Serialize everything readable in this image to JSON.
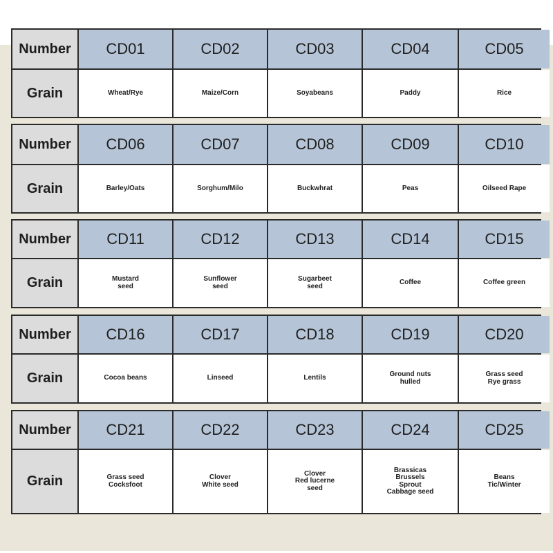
{
  "blocks": [
    {
      "number_label": "Number",
      "grain_label": "Grain",
      "codes": [
        "CD01",
        "CD02",
        "CD03",
        "CD04",
        "CD05"
      ],
      "grains": [
        "Wheat/Rye",
        "Maize/Corn",
        "Soyabeans",
        "Paddy",
        "Rice"
      ]
    },
    {
      "number_label": "Number",
      "grain_label": "Grain",
      "codes": [
        "CD06",
        "CD07",
        "CD08",
        "CD09",
        "CD10"
      ],
      "grains": [
        "Barley/Oats",
        "Sorghum/Milo",
        "Buckwhrat",
        "Peas",
        "Oilseed Rape"
      ]
    },
    {
      "number_label": "Number",
      "grain_label": "Grain",
      "codes": [
        "CD11",
        "CD12",
        "CD13",
        "CD14",
        "CD15"
      ],
      "grains": [
        "Mustard\nseed",
        "Sunflower\nseed",
        "Sugarbeet\nseed",
        "Coffee",
        "Coffee green"
      ]
    },
    {
      "number_label": "Number",
      "grain_label": "Grain",
      "codes": [
        "CD16",
        "CD17",
        "CD18",
        "CD19",
        "CD20"
      ],
      "grains": [
        "Cocoa beans",
        "Linseed",
        "Lentils",
        "Ground nuts\nhulled",
        "Grass seed\nRye grass"
      ]
    },
    {
      "number_label": "Number",
      "grain_label": "Grain",
      "codes": [
        "CD21",
        "CD22",
        "CD23",
        "CD24",
        "CD25"
      ],
      "grains": [
        "Grass seed\nCocksfoot",
        "Clover\nWhite seed",
        "Clover\nRed lucerne\nseed",
        "Brassicas\nBrussels\nSprout\nCabbage seed",
        "Beans\nTic/Winter"
      ]
    }
  ]
}
